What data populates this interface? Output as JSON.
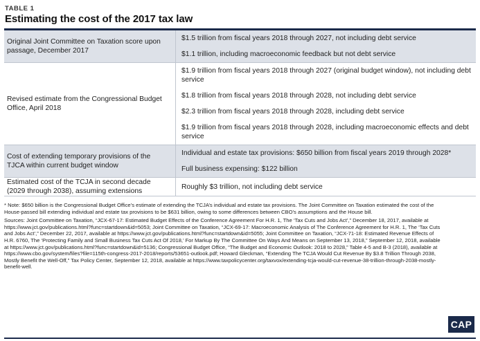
{
  "header": {
    "table_label": "TABLE 1",
    "title": "Estimating the cost of the 2017 tax law"
  },
  "rows": [
    {
      "label": "Original Joint Committee on Taxation score upon passage, December 2017",
      "details": [
        "$1.5 trillion from fiscal years 2018 through 2027, not including debt service",
        "$1.1 trillion, including macroeconomic feedback but not debt service"
      ]
    },
    {
      "label": "Revised estimate from the Congressional Budget Office, April 2018",
      "details": [
        "$1.9 trillion from fiscal years 2018 through 2027 (original budget window), not including debt service",
        "$1.8 trillion from fiscal years 2018 through 2028, not including debt service",
        "$2.3 trillion from fiscal years 2018 through 2028, including debt service",
        "$1.9 trillion from fiscal years 2018 through 2028, including macroeconomic effects and debt service"
      ]
    },
    {
      "label": "Cost of extending temporary provisions of the TJCA within current budget window",
      "details": [
        "Individual and estate tax provisions: $650 billion from fiscal years 2019 through 2028*",
        "Full business expensing: $122 billion"
      ]
    },
    {
      "label": "Estimated cost of the TCJA in second decade (2029 through 2038), assuming extensions",
      "details": [
        "Roughly $3 trillion, not including debt service"
      ]
    }
  ],
  "notes": {
    "footnote": "* Note: $650 billion is the Congressional Budget Office’s estimate of extending the TCJA’s individual and estate tax provisions. The Joint Committee on Taxation estimated the cost of the House-passed bill extending individual and estate tax provisions to be $631 billion, owing to some differences between CBO’s assumptions and the House bill.",
    "sources": "Sources: Joint Committee on Taxation, “JCX-67-17: Estimated Budget Effects of the Conference Agreement For H.R. 1, The ‘Tax Cuts and Jobs Act’,” December 18, 2017, available at https://www.jct.gov/publications.html?func=startdown&id=5053; Joint Committee on Taxation, “JCX-69-17: Macroeconomic Analysis of The Conference Agreement for H.R. 1, The ‘Tax Cuts and Jobs Act’,” December 22, 2017, available at https://www.jct.gov/publications.html?func=startdown&id=5055; Joint Committee on Taxation, “JCX-71-18: Estimated Revenue Effects of H.R. 6760, The ‘Protecting Family and Small Business Tax Cuts Act Of 2018,’ For Markup By The Committee On Ways And Means on September 13, 2018,” September 12, 2018, available at https://www.jct.gov/publications.html?func=startdown&id=5136; Congressional Budget Office, “The Budget and Economic Outlook: 2018 to 2028,” Table 4-5 and B-3 (2018), available at https://www.cbo.gov/system/files?file=115th-congress-2017-2018/reports/53651-outlook.pdf; Howard Gleckman, “Extending The TCJA Would Cut Revenue By $3.8 Trillion Through 2038, Mostly Benefit the Well-Off,” Tax Policy Center, September 12, 2018, available at https://www.taxpolicycenter.org/taxvox/extending-tcja-would-cut-revenue-38-trillion-through-2038-mostly-benefit-well."
  },
  "logo": {
    "text": "CAP",
    "color": "#1b2a4a"
  }
}
